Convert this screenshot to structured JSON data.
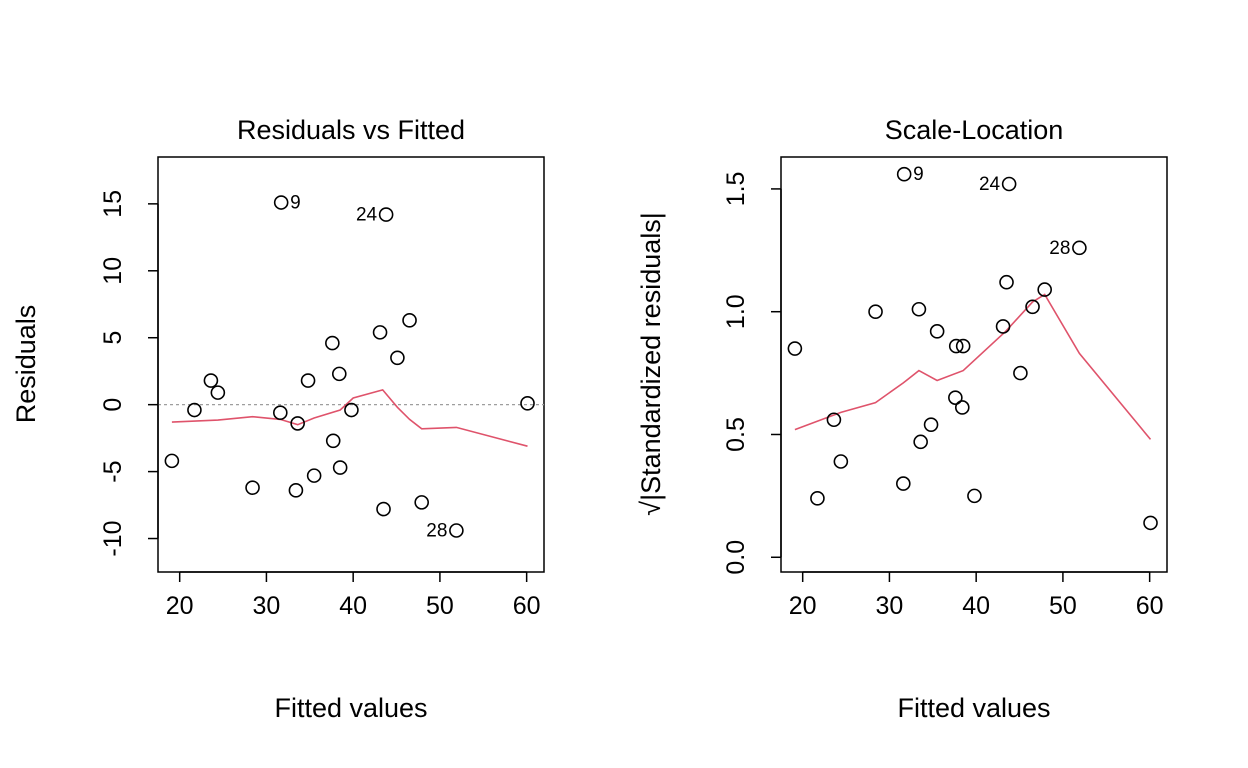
{
  "colors": {
    "smooth_line": "#DF536B",
    "reference_line": "#9E9E9E",
    "points": "#000000"
  },
  "chart_data": [
    {
      "type": "scatter",
      "title": "Residuals vs Fitted",
      "xlabel": "Fitted values",
      "ylabel": "Residuals",
      "xlim": [
        17.5,
        62
      ],
      "ylim": [
        -12.5,
        18.5
      ],
      "xticks": [
        20,
        30,
        40,
        50,
        60
      ],
      "yticks": [
        -10,
        -5,
        0,
        5,
        10,
        15
      ],
      "reference_line": 0,
      "points": [
        {
          "x": 19.1,
          "y": -4.2
        },
        {
          "x": 21.7,
          "y": -0.4
        },
        {
          "x": 23.6,
          "y": 1.8
        },
        {
          "x": 24.4,
          "y": 0.9
        },
        {
          "x": 28.4,
          "y": -6.2
        },
        {
          "x": 31.6,
          "y": -0.6
        },
        {
          "x": 31.7,
          "y": 15.1
        },
        {
          "x": 33.4,
          "y": -6.4
        },
        {
          "x": 33.6,
          "y": -1.4
        },
        {
          "x": 34.8,
          "y": 1.8
        },
        {
          "x": 35.5,
          "y": -5.3
        },
        {
          "x": 37.6,
          "y": 4.6
        },
        {
          "x": 37.7,
          "y": -2.7
        },
        {
          "x": 38.4,
          "y": 2.3
        },
        {
          "x": 38.5,
          "y": -4.7
        },
        {
          "x": 39.8,
          "y": -0.4
        },
        {
          "x": 43.1,
          "y": 5.4
        },
        {
          "x": 43.5,
          "y": -7.8
        },
        {
          "x": 43.8,
          "y": 14.2
        },
        {
          "x": 45.1,
          "y": 3.5
        },
        {
          "x": 46.5,
          "y": 6.3
        },
        {
          "x": 47.9,
          "y": -7.3
        },
        {
          "x": 51.9,
          "y": -9.4
        },
        {
          "x": 60.1,
          "y": 0.1
        }
      ],
      "labeled_points": [
        {
          "label": "9",
          "x": 31.7,
          "y": 15.1,
          "side": "right"
        },
        {
          "label": "24",
          "x": 43.8,
          "y": 14.2,
          "side": "left"
        },
        {
          "label": "28",
          "x": 51.9,
          "y": -9.4,
          "side": "left"
        }
      ],
      "smooth": [
        {
          "x": 19.1,
          "y": -1.3
        },
        {
          "x": 24.4,
          "y": -1.15
        },
        {
          "x": 28.4,
          "y": -0.9
        },
        {
          "x": 31.6,
          "y": -1.1
        },
        {
          "x": 33.6,
          "y": -1.5
        },
        {
          "x": 35.5,
          "y": -1.0
        },
        {
          "x": 38.5,
          "y": -0.4
        },
        {
          "x": 40.0,
          "y": 0.5
        },
        {
          "x": 43.4,
          "y": 1.1
        },
        {
          "x": 45.1,
          "y": -0.2
        },
        {
          "x": 46.5,
          "y": -1.1
        },
        {
          "x": 47.9,
          "y": -1.8
        },
        {
          "x": 51.9,
          "y": -1.7
        },
        {
          "x": 60.1,
          "y": -3.1
        }
      ]
    },
    {
      "type": "scatter",
      "title": "Scale-Location",
      "xlabel": "Fitted values",
      "ylabel": "√|Standardized residuals|",
      "xlim": [
        17.5,
        62
      ],
      "ylim": [
        -0.06,
        1.63
      ],
      "xticks": [
        20,
        30,
        40,
        50,
        60
      ],
      "yticks": [
        0.0,
        0.5,
        1.0,
        1.5
      ],
      "ytick_labels": [
        "0.0",
        "0.5",
        "1.0",
        "1.5"
      ],
      "points": [
        {
          "x": 19.1,
          "y": 0.85
        },
        {
          "x": 21.7,
          "y": 0.24
        },
        {
          "x": 23.6,
          "y": 0.56
        },
        {
          "x": 24.4,
          "y": 0.39
        },
        {
          "x": 28.4,
          "y": 1.0
        },
        {
          "x": 31.6,
          "y": 0.3
        },
        {
          "x": 31.7,
          "y": 1.56
        },
        {
          "x": 33.4,
          "y": 1.01
        },
        {
          "x": 33.6,
          "y": 0.47
        },
        {
          "x": 34.8,
          "y": 0.54
        },
        {
          "x": 35.5,
          "y": 0.92
        },
        {
          "x": 37.6,
          "y": 0.65
        },
        {
          "x": 37.7,
          "y": 0.86
        },
        {
          "x": 38.4,
          "y": 0.61
        },
        {
          "x": 38.5,
          "y": 0.86
        },
        {
          "x": 39.8,
          "y": 0.25
        },
        {
          "x": 43.1,
          "y": 0.94
        },
        {
          "x": 43.5,
          "y": 1.12
        },
        {
          "x": 43.8,
          "y": 1.52
        },
        {
          "x": 45.1,
          "y": 0.75
        },
        {
          "x": 46.5,
          "y": 1.02
        },
        {
          "x": 47.9,
          "y": 1.09
        },
        {
          "x": 51.9,
          "y": 1.26
        },
        {
          "x": 60.1,
          "y": 0.14
        }
      ],
      "labeled_points": [
        {
          "label": "9",
          "x": 31.7,
          "y": 1.56,
          "side": "right"
        },
        {
          "label": "24",
          "x": 43.8,
          "y": 1.52,
          "side": "left"
        },
        {
          "label": "28",
          "x": 51.9,
          "y": 1.26,
          "side": "left"
        }
      ],
      "smooth": [
        {
          "x": 19.1,
          "y": 0.52
        },
        {
          "x": 24.4,
          "y": 0.59
        },
        {
          "x": 28.4,
          "y": 0.63
        },
        {
          "x": 31.6,
          "y": 0.71
        },
        {
          "x": 33.4,
          "y": 0.76
        },
        {
          "x": 35.5,
          "y": 0.72
        },
        {
          "x": 38.5,
          "y": 0.76
        },
        {
          "x": 43.4,
          "y": 0.92
        },
        {
          "x": 46.5,
          "y": 1.04
        },
        {
          "x": 47.9,
          "y": 1.07
        },
        {
          "x": 51.9,
          "y": 0.83
        },
        {
          "x": 60.1,
          "y": 0.48
        }
      ]
    }
  ]
}
